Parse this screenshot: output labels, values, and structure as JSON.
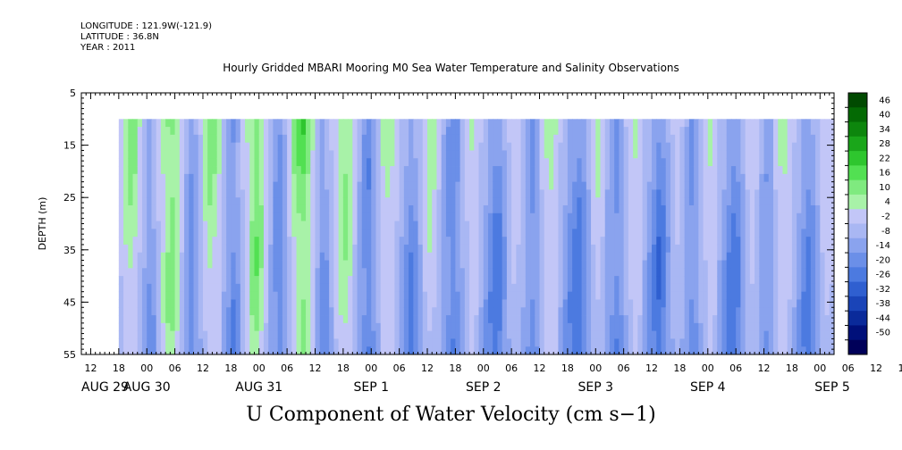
{
  "header": {
    "longitude": "LONGITUDE : 121.9W(-121.9)",
    "latitude": "LATITUDE : 36.8N",
    "year": "YEAR : 2011",
    "title": "Hourly Gridded MBARI Mooring M0 Sea Water Temperature and Salinity Observations",
    "bottom_title": "U Component of Water Velocity (cm s−1)"
  },
  "chart_data": {
    "type": "heatmap",
    "title": "Hourly Gridded MBARI Mooring M0 Sea Water Temperature and Salinity Observations",
    "variable": "U Component of Water Velocity (cm s−1)",
    "ylabel": "DEPTH (m)",
    "ylim": [
      5,
      55
    ],
    "y_inverted": true,
    "y_ticks": [
      5,
      15,
      25,
      35,
      45,
      55
    ],
    "data_depth_range": [
      10,
      55
    ],
    "x_start": "AUG 29 10",
    "x_end": "SEP 5 03",
    "data_start": "AUG 29 18",
    "x_hour_tick_labels": [
      "12",
      "18",
      "00",
      "06",
      "12",
      "18",
      "00",
      "06",
      "12",
      "18",
      "00",
      "06",
      "12",
      "18",
      "00",
      "06",
      "12",
      "18",
      "00",
      "06",
      "12",
      "18",
      "00",
      "06",
      "12",
      "18",
      "00",
      "06",
      "12",
      "18",
      "00"
    ],
    "x_date_labels": [
      "AUG 29",
      "AUG 30",
      "AUG 31",
      "SEP  1",
      "SEP  2",
      "SEP  3",
      "SEP  4",
      "SEP  5"
    ],
    "colorbar_levels": [
      -50,
      -44,
      -38,
      -32,
      -26,
      -20,
      -14,
      -8,
      -2,
      4,
      10,
      16,
      22,
      28,
      34,
      40,
      46
    ],
    "colorbar_labels": [
      "46",
      "40",
      "34",
      "28",
      "22",
      "16",
      "10",
      "4",
      "-2",
      "-8",
      "-14",
      "-20",
      "-26",
      "-32",
      "-38",
      "-44",
      "-50"
    ],
    "colorbar_colors": [
      "#000059",
      "#00107a",
      "#0a2a9a",
      "#1a44b8",
      "#2f5fd0",
      "#4c7ae0",
      "#6b8fe8",
      "#8aa3ee",
      "#a9b7f3",
      "#c2c6f7",
      "#a8f2a8",
      "#7fea7f",
      "#52e052",
      "#2ec62e",
      "#1aa61a",
      "#0d860d",
      "#046a04",
      "#014a01"
    ],
    "data_grid_note": "Hourly columns, values shown as colored bands; estimated pattern",
    "column_values_cm_s": [
      4,
      10,
      14,
      12,
      4,
      -6,
      -12,
      -8,
      2,
      10,
      16,
      18,
      12,
      2,
      -8,
      -14,
      -10,
      -2,
      8,
      14,
      12,
      6,
      -4,
      -10,
      -16,
      -10,
      0,
      8,
      16,
      20,
      14,
      6,
      -4,
      -12,
      -16,
      -8,
      2,
      12,
      18,
      22,
      16,
      6,
      -4,
      -12,
      -10,
      -2,
      6,
      12,
      14,
      10,
      2,
      -6,
      -14,
      -18,
      -10,
      -2,
      6,
      10,
      8,
      2,
      -6,
      -12,
      -16,
      -12,
      -4,
      4,
      8,
      6,
      0,
      -8,
      -14,
      -18,
      -14,
      -6,
      2,
      6,
      4,
      -2,
      -8,
      -14,
      -20,
      -18,
      -10,
      -2,
      4,
      2,
      -4,
      -10,
      -14,
      -8,
      0,
      6,
      10,
      6,
      -2,
      -8,
      -14,
      -18,
      -20,
      -14,
      -6,
      2,
      6,
      2,
      -6,
      -12,
      -16,
      -10,
      -2,
      4,
      8,
      4,
      -4,
      -10,
      -16,
      -22,
      -18,
      -10,
      -2,
      2,
      -2,
      -8,
      -14,
      -10,
      -2,
      4,
      8,
      4,
      -4,
      -10,
      -16,
      -20,
      -16,
      -8,
      0,
      4,
      0,
      -6,
      -12,
      -8,
      0,
      6,
      8,
      4,
      -2,
      -8,
      -14,
      -18,
      -14,
      -6,
      2,
      6,
      4
    ]
  }
}
